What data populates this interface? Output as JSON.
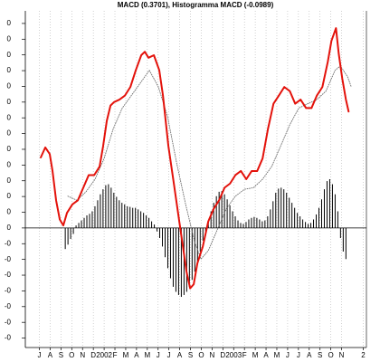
{
  "chart_data": {
    "type": "line",
    "title": "MACD (0.3701), Histogramma MACD (-0.0989)",
    "xlim": [
      -1.3,
      30.3
    ],
    "xticks": [
      {
        "value": 0,
        "label": "J"
      },
      {
        "value": 1,
        "label": "A"
      },
      {
        "value": 2,
        "label": "S"
      },
      {
        "value": 3,
        "label": "O"
      },
      {
        "value": 4,
        "label": "N"
      },
      {
        "value": 5,
        "label": "D"
      },
      {
        "value": 6,
        "label": "2002"
      },
      {
        "value": 7,
        "label": "F"
      },
      {
        "value": 8,
        "label": "M"
      },
      {
        "value": 9,
        "label": "A"
      },
      {
        "value": 10,
        "label": "M"
      },
      {
        "value": 11,
        "label": "J"
      },
      {
        "value": 12,
        "label": "J"
      },
      {
        "value": 13,
        "label": "A"
      },
      {
        "value": 14,
        "label": "S"
      },
      {
        "value": 15,
        "label": "O"
      },
      {
        "value": 16,
        "label": "N"
      },
      {
        "value": 17,
        "label": "D"
      },
      {
        "value": 18,
        "label": "2003"
      },
      {
        "value": 19,
        "label": "F"
      },
      {
        "value": 20,
        "label": "M"
      },
      {
        "value": 21,
        "label": "A"
      },
      {
        "value": 22,
        "label": "M"
      },
      {
        "value": 23,
        "label": "J"
      },
      {
        "value": 24,
        "label": "J"
      },
      {
        "value": 25,
        "label": "A"
      },
      {
        "value": 26,
        "label": "S"
      },
      {
        "value": 27,
        "label": "O"
      },
      {
        "value": 28,
        "label": "N"
      },
      {
        "value": 30,
        "label": "2"
      }
    ],
    "ylim": [
      -0.38,
      0.69
    ],
    "yticks": [
      {
        "value": -0.35,
        "label": "-0"
      },
      {
        "value": -0.3,
        "label": "-0"
      },
      {
        "value": -0.25,
        "label": "-0"
      },
      {
        "value": -0.2,
        "label": "-0"
      },
      {
        "value": -0.15,
        "label": "-0"
      },
      {
        "value": -0.1,
        "label": "-0"
      },
      {
        "value": -0.05,
        "label": "-0"
      },
      {
        "value": 0,
        "label": "0"
      },
      {
        "value": 0.05,
        "label": "0"
      },
      {
        "value": 0.1,
        "label": "0"
      },
      {
        "value": 0.15,
        "label": "0"
      },
      {
        "value": 0.2,
        "label": "0"
      },
      {
        "value": 0.25,
        "label": "0"
      },
      {
        "value": 0.3,
        "label": "0"
      },
      {
        "value": 0.35,
        "label": "0"
      },
      {
        "value": 0.4,
        "label": "0"
      },
      {
        "value": 0.45,
        "label": "0"
      },
      {
        "value": 0.5,
        "label": "0"
      },
      {
        "value": 0.55,
        "label": "0"
      },
      {
        "value": 0.6,
        "label": "0"
      },
      {
        "value": 0.65,
        "label": "0"
      }
    ],
    "grid": true,
    "series": [
      {
        "type": "bar",
        "color": "#000000",
        "x": [
          2.4,
          2.65,
          2.9,
          3.15,
          3.4,
          3.65,
          3.9,
          4.15,
          4.4,
          4.65,
          4.9,
          5.15,
          5.4,
          5.65,
          5.9,
          6.15,
          6.4,
          6.65,
          6.9,
          7.15,
          7.4,
          7.65,
          7.9,
          8.15,
          8.4,
          8.65,
          8.9,
          9.15,
          9.4,
          9.65,
          9.9,
          10.15,
          10.4,
          10.65,
          10.9,
          11.15,
          11.4,
          11.65,
          11.9,
          12.15,
          12.4,
          12.65,
          12.9,
          13.15,
          13.4,
          13.65,
          13.9,
          14.15,
          14.4,
          14.65,
          14.9,
          15.15,
          15.4,
          15.65,
          15.9,
          16.15,
          16.4,
          16.65,
          16.9,
          17.15,
          17.4,
          17.65,
          17.9,
          18.15,
          18.4,
          18.65,
          18.9,
          19.15,
          19.4,
          19.65,
          19.9,
          20.15,
          20.4,
          20.65,
          20.9,
          21.15,
          21.4,
          21.65,
          21.9,
          22.15,
          22.4,
          22.65,
          22.9,
          23.15,
          23.4,
          23.65,
          23.9,
          24.15,
          24.4,
          24.65,
          24.9,
          25.15,
          25.4,
          25.65,
          25.9,
          26.15,
          26.4,
          26.65,
          26.9,
          27.15,
          27.4,
          27.65,
          27.9,
          28.15,
          28.4
        ],
        "values": [
          -0.067,
          -0.053,
          -0.035,
          -0.019,
          0.008,
          0.016,
          0.024,
          0.032,
          0.04,
          0.045,
          0.053,
          0.069,
          0.088,
          0.107,
          0.123,
          0.136,
          0.139,
          0.128,
          0.112,
          0.099,
          0.088,
          0.08,
          0.075,
          0.069,
          0.067,
          0.064,
          0.064,
          0.059,
          0.053,
          0.048,
          0.04,
          0.032,
          0.021,
          0.011,
          -0.011,
          -0.032,
          -0.059,
          -0.093,
          -0.128,
          -0.16,
          -0.187,
          -0.203,
          -0.213,
          -0.219,
          -0.213,
          -0.203,
          -0.187,
          -0.165,
          -0.139,
          -0.107,
          -0.075,
          -0.04,
          -0.011,
          0.021,
          0.053,
          0.08,
          0.101,
          0.115,
          0.117,
          0.107,
          0.091,
          0.072,
          0.053,
          0.037,
          0.024,
          0.016,
          0.013,
          0.019,
          0.027,
          0.032,
          0.035,
          0.032,
          0.027,
          0.021,
          0.024,
          0.037,
          0.059,
          0.085,
          0.112,
          0.125,
          0.128,
          0.123,
          0.112,
          0.096,
          0.08,
          0.064,
          0.048,
          0.037,
          0.027,
          0.019,
          0.013,
          0.016,
          0.027,
          0.043,
          0.064,
          0.091,
          0.123,
          0.149,
          0.155,
          0.139,
          0.107,
          0.053,
          -0.032,
          -0.075,
          -0.0989
        ]
      },
      {
        "type": "line",
        "style": "dotted",
        "color": "#6e6e6e",
        "x": [
          2.64,
          3.48,
          4.32,
          5.16,
          6.0,
          6.84,
          7.68,
          8.52,
          9.36,
          10.19,
          11.03,
          11.87,
          12.71,
          13.55,
          14.39,
          14.97,
          15.65,
          16.49,
          17.32,
          18.16,
          19.0,
          19.84,
          20.68,
          21.52,
          22.36,
          23.2,
          24.03,
          24.87,
          25.71,
          26.55,
          27.39,
          27.89,
          28.56,
          28.9
        ],
        "values": [
          0.101,
          0.088,
          0.115,
          0.155,
          0.221,
          0.315,
          0.381,
          0.421,
          0.461,
          0.501,
          0.448,
          0.355,
          0.208,
          0.075,
          -0.045,
          -0.099,
          -0.072,
          -0.005,
          0.061,
          0.101,
          0.123,
          0.128,
          0.155,
          0.195,
          0.261,
          0.328,
          0.381,
          0.395,
          0.408,
          0.435,
          0.501,
          0.515,
          0.48,
          0.448
        ]
      },
      {
        "type": "line",
        "style": "solid",
        "color": "#e3120b",
        "x": [
          0.13,
          0.55,
          0.96,
          1.22,
          1.55,
          1.89,
          2.22,
          2.56,
          3.06,
          3.57,
          4.07,
          4.57,
          5.08,
          5.58,
          5.91,
          6.25,
          6.59,
          6.92,
          7.42,
          7.93,
          8.43,
          8.93,
          9.44,
          9.77,
          10.11,
          10.61,
          11.11,
          11.45,
          11.95,
          12.46,
          12.96,
          13.3,
          13.63,
          13.97,
          14.3,
          14.64,
          15.14,
          15.65,
          16.15,
          16.65,
          17.16,
          17.66,
          18.16,
          18.67,
          19.17,
          19.67,
          20.18,
          20.68,
          21.18,
          21.69,
          22.19,
          22.69,
          23.2,
          23.7,
          24.2,
          24.71,
          25.21,
          25.71,
          26.22,
          26.72,
          27.06,
          27.48,
          27.73,
          28.06,
          28.4,
          28.65
        ],
        "values": [
          0.224,
          0.256,
          0.235,
          0.181,
          0.088,
          0.027,
          0.008,
          0.048,
          0.075,
          0.088,
          0.128,
          0.168,
          0.168,
          0.195,
          0.261,
          0.341,
          0.389,
          0.4,
          0.408,
          0.421,
          0.448,
          0.501,
          0.549,
          0.56,
          0.541,
          0.549,
          0.501,
          0.421,
          0.261,
          0.141,
          0.021,
          -0.059,
          -0.139,
          -0.192,
          -0.179,
          -0.112,
          -0.059,
          0.021,
          0.061,
          0.088,
          0.128,
          0.141,
          0.168,
          0.181,
          0.155,
          0.181,
          0.181,
          0.221,
          0.315,
          0.395,
          0.421,
          0.448,
          0.435,
          0.395,
          0.408,
          0.381,
          0.381,
          0.421,
          0.448,
          0.528,
          0.595,
          0.635,
          0.555,
          0.475,
          0.408,
          0.3701
        ]
      }
    ]
  }
}
